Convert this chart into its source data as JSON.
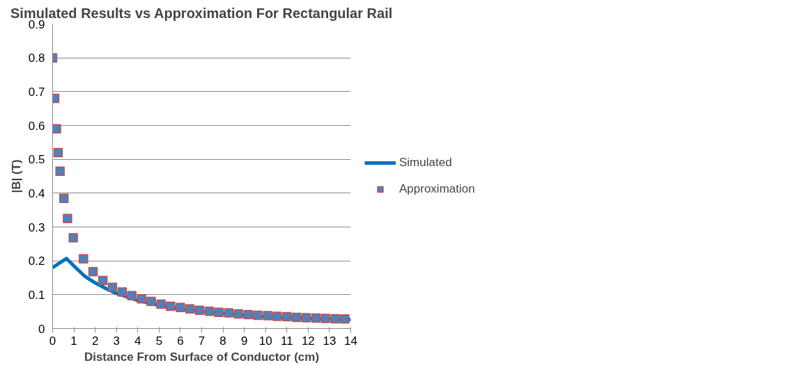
{
  "chart_data": {
    "type": "scatter",
    "title": "Simulated Results vs Approximation For Rectangular Rail",
    "xlabel": "Distance From Surface of Conductor (cm)",
    "ylabel": "|B| (T)",
    "xlim": [
      0,
      14
    ],
    "xticks": [
      0,
      1,
      2,
      3,
      4,
      5,
      6,
      7,
      8,
      9,
      10,
      11,
      12,
      13,
      14
    ],
    "ylim": [
      0,
      0.9
    ],
    "yticks": [
      0,
      0.1,
      0.2,
      0.3,
      0.4,
      0.5,
      0.6,
      0.7,
      0.8,
      0.9
    ],
    "grid": "y",
    "legend": "right",
    "series": [
      {
        "name": "Simulated",
        "type": "line",
        "color": "#0070c0",
        "line_style": "solid",
        "x": [
          0,
          0.65,
          1,
          1.5,
          2,
          2.5,
          3,
          4,
          5,
          6,
          7,
          8,
          9,
          10,
          11,
          12,
          13,
          14
        ],
        "values": [
          0.18,
          0.207,
          0.185,
          0.155,
          0.135,
          0.118,
          0.104,
          0.083,
          0.068,
          0.058,
          0.05,
          0.044,
          0.039,
          0.035,
          0.032,
          0.03,
          0.028,
          0.026
        ]
      },
      {
        "name": "Approximation",
        "color": "#4f81bd",
        "marker": "square",
        "x": [
          0,
          0.1,
          0.18,
          0.26,
          0.35,
          0.53,
          0.7,
          0.97,
          1.45,
          1.9,
          2.36,
          2.81,
          3.27,
          3.72,
          4.18,
          4.63,
          5.09,
          5.54,
          6.0,
          6.45,
          6.9,
          7.36,
          7.81,
          8.27,
          8.72,
          9.18,
          9.63,
          10.09,
          10.54,
          11.0,
          11.45,
          11.9,
          12.36,
          12.81,
          13.27,
          13.72
        ],
        "values": [
          0.8,
          0.68,
          0.59,
          0.52,
          0.465,
          0.385,
          0.325,
          0.268,
          0.206,
          0.168,
          0.142,
          0.122,
          0.108,
          0.097,
          0.088,
          0.08,
          0.072,
          0.066,
          0.062,
          0.058,
          0.054,
          0.051,
          0.048,
          0.046,
          0.043,
          0.041,
          0.039,
          0.038,
          0.036,
          0.035,
          0.033,
          0.032,
          0.031,
          0.03,
          0.029,
          0.028
        ]
      }
    ]
  }
}
